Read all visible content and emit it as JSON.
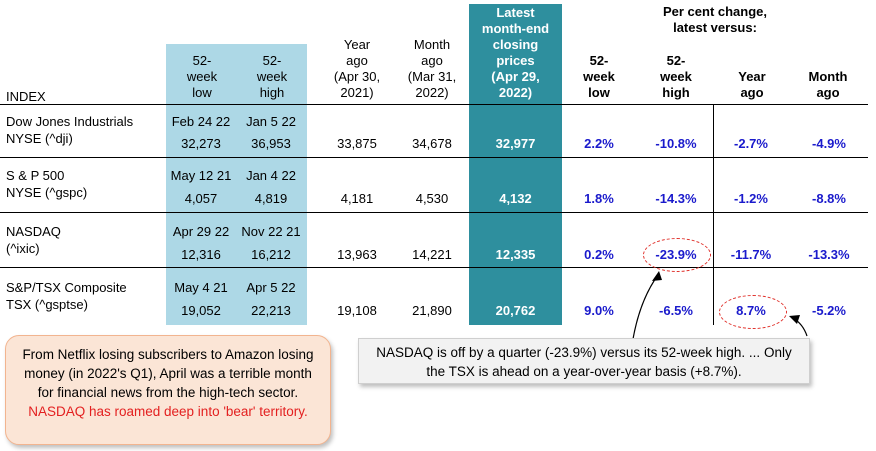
{
  "headers": {
    "index": "INDEX",
    "low52": [
      "52-",
      "week",
      "low"
    ],
    "high52": [
      "52-",
      "week",
      "high"
    ],
    "year_ago": [
      "Year",
      "ago",
      "(Apr 30,",
      "2021)"
    ],
    "month_ago": [
      "Month",
      "ago",
      "(Mar 31,",
      "2022)"
    ],
    "latest": [
      "Latest",
      "month-end",
      "closing",
      "prices",
      "(Apr 29,",
      "2022)"
    ],
    "pct_group": [
      "Per cent change,",
      "latest versus:"
    ],
    "pct_low": [
      "52-",
      "week",
      "low"
    ],
    "pct_high": [
      "52-",
      "week",
      "high"
    ],
    "pct_year": [
      "Year",
      "ago"
    ],
    "pct_month": [
      "Month",
      "ago"
    ]
  },
  "rows": [
    {
      "name": [
        "Dow Jones Industrials",
        "NYSE (^dji)"
      ],
      "low_date": "Feb 24 22",
      "low": "32,273",
      "high_date": "Jan 5 22",
      "high": "36,953",
      "year_ago": "33,875",
      "month_ago": "34,678",
      "latest": "32,977",
      "pct_low": "2.2%",
      "pct_high": "-10.8%",
      "pct_year": "-2.7%",
      "pct_month": "-4.9%"
    },
    {
      "name": [
        "S & P 500",
        "NYSE (^gspc)"
      ],
      "low_date": "May 12 21",
      "low": "4,057",
      "high_date": "Jan 4 22",
      "high": "4,819",
      "year_ago": "4,181",
      "month_ago": "4,530",
      "latest": "4,132",
      "pct_low": "1.8%",
      "pct_high": "-14.3%",
      "pct_year": "-1.2%",
      "pct_month": "-8.8%"
    },
    {
      "name": [
        "NASDAQ",
        "(^ixic)"
      ],
      "low_date": "Apr 29 22",
      "low": "12,316",
      "high_date": "Nov 22 21",
      "high": "16,212",
      "year_ago": "13,963",
      "month_ago": "14,221",
      "latest": "12,335",
      "pct_low": "0.2%",
      "pct_high": "-23.9%",
      "pct_year": "-11.7%",
      "pct_month": "-13.3%"
    },
    {
      "name": [
        "S&P/TSX Composite",
        "TSX (^gsptse)"
      ],
      "low_date": "May 4 21",
      "low": "19,052",
      "high_date": "Apr 5 22",
      "high": "22,213",
      "year_ago": "19,108",
      "month_ago": "21,890",
      "latest": "20,762",
      "pct_low": "9.0%",
      "pct_high": "-6.5%",
      "pct_year": "8.7%",
      "pct_month": "-5.2%"
    }
  ],
  "note_left": {
    "text": "From Netflix losing subscribers to Amazon losing money (in 2022's Q1), April was a terrible month for financial news from the high-tech sector.",
    "highlight": "NASDAQ has roamed deep into 'bear' territory."
  },
  "note_right": "NASDAQ is off by a quarter (-23.9%) versus its 52-week high. ... Only the TSX is ahead on a year-over-year basis (+8.7%).",
  "colors": {
    "light_blue": "#add8e6",
    "teal": "#2e8f9e",
    "pct_blue": "#1a1acc",
    "highlight_red": "#e32020",
    "note_left_bg": "#fbe5d6",
    "note_right_bg": "#f2f2f2"
  }
}
